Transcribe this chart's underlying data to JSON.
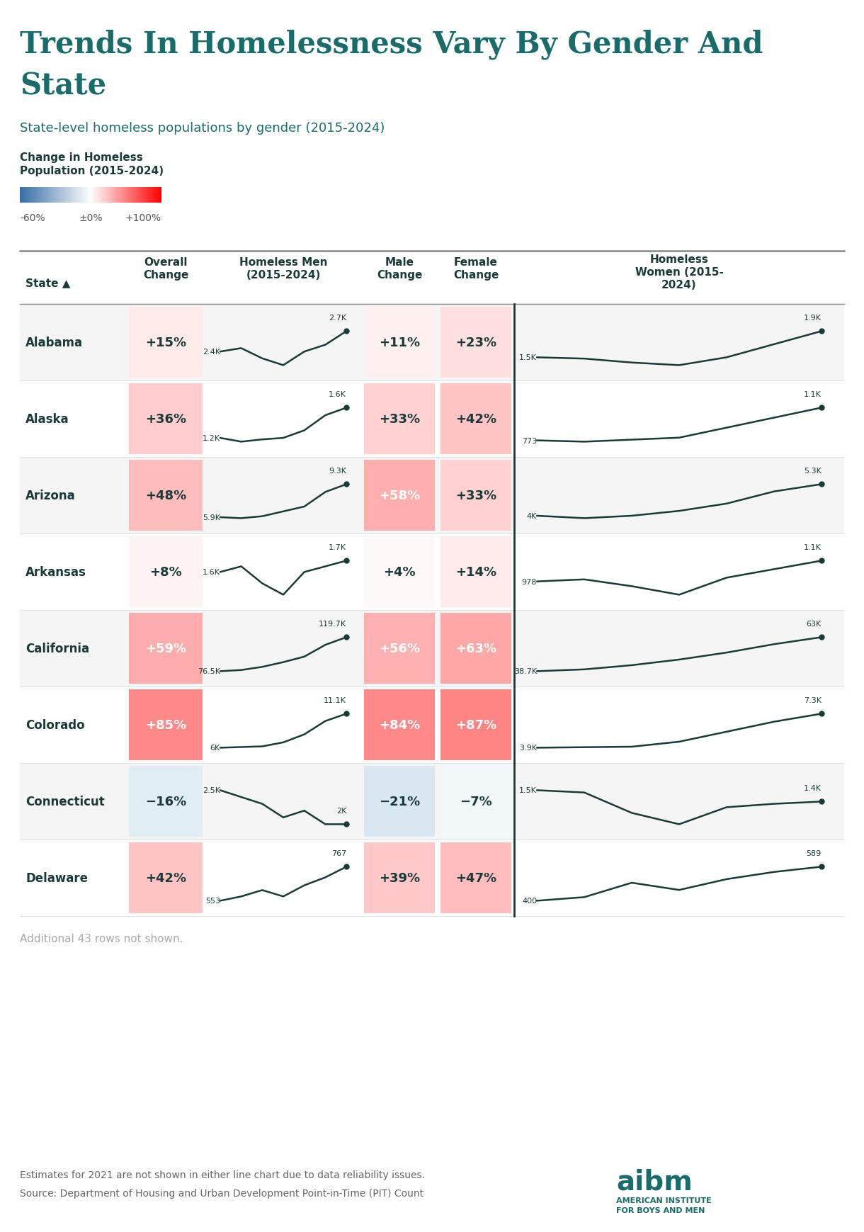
{
  "title_line1": "Trends In Homelessness Vary By Gender And",
  "title_line2": "State",
  "subtitle": "State-level homeless populations by gender (2015-2024)",
  "legend_label": "Change in Homeless\nPopulation (2015-2024)",
  "footer_note": "Additional 43 rows not shown.",
  "footnote1": "Estimates for 2021 are not shown in either line chart due to data reliability issues.",
  "footnote2": "Source: Department of Housing and Urban Development Point-in-Time (PIT) Count",
  "title_color": "#1a6b6b",
  "header_color": "#1a3a3a",
  "line_color": "#1a3a3a",
  "bg_color": "#ffffff",
  "rows": [
    {
      "state": "Alabama",
      "overall_pct": "+15%",
      "overall_val": 15,
      "male_pct": "+11%",
      "male_val": 11,
      "female_pct": "+23%",
      "female_val": 23,
      "men_label_start": "2.4K",
      "men_label_end": "2.7K",
      "women_label_start": "1.5K",
      "women_label_end": "1.9K",
      "men_sparkline": [
        2400,
        2450,
        2300,
        2200,
        2400,
        2500,
        2700
      ],
      "women_sparkline": [
        1500,
        1480,
        1420,
        1380,
        1500,
        1700,
        1900
      ]
    },
    {
      "state": "Alaska",
      "overall_pct": "+36%",
      "overall_val": 36,
      "male_pct": "+33%",
      "male_val": 33,
      "female_pct": "+42%",
      "female_val": 42,
      "men_label_start": "1.2K",
      "men_label_end": "1.6K",
      "women_label_start": "773",
      "women_label_end": "1.1K",
      "men_sparkline": [
        1200,
        1150,
        1180,
        1200,
        1300,
        1500,
        1600
      ],
      "women_sparkline": [
        773,
        760,
        780,
        800,
        900,
        1000,
        1100
      ]
    },
    {
      "state": "Arizona",
      "overall_pct": "+48%",
      "overall_val": 48,
      "male_pct": "+58%",
      "male_val": 58,
      "female_pct": "+33%",
      "female_val": 33,
      "men_label_start": "5.9K",
      "men_label_end": "9.3K",
      "women_label_start": "4K",
      "women_label_end": "5.3K",
      "men_sparkline": [
        5900,
        5800,
        6000,
        6500,
        7000,
        8500,
        9300
      ],
      "women_sparkline": [
        4000,
        3900,
        4000,
        4200,
        4500,
        5000,
        5300
      ]
    },
    {
      "state": "Arkansas",
      "overall_pct": "+8%",
      "overall_val": 8,
      "male_pct": "+4%",
      "male_val": 4,
      "female_pct": "+14%",
      "female_val": 14,
      "men_label_start": "1.6K",
      "men_label_end": "1.7K",
      "women_label_start": "978",
      "women_label_end": "1.1K",
      "men_sparkline": [
        1600,
        1650,
        1500,
        1400,
        1600,
        1650,
        1700
      ],
      "women_sparkline": [
        978,
        990,
        950,
        900,
        1000,
        1050,
        1100
      ]
    },
    {
      "state": "California",
      "overall_pct": "+59%",
      "overall_val": 59,
      "male_pct": "+56%",
      "male_val": 56,
      "female_pct": "+63%",
      "female_val": 63,
      "men_label_start": "76.5K",
      "men_label_end": "119.7K",
      "women_label_start": "38.7K",
      "women_label_end": "63K",
      "men_sparkline": [
        76500,
        78000,
        82000,
        88000,
        95000,
        110000,
        119700
      ],
      "women_sparkline": [
        38700,
        40000,
        43000,
        47000,
        52000,
        58000,
        63000
      ]
    },
    {
      "state": "Colorado",
      "overall_pct": "+85%",
      "overall_val": 85,
      "male_pct": "+84%",
      "male_val": 84,
      "female_pct": "+87%",
      "female_val": 87,
      "men_label_start": "6K",
      "men_label_end": "11.1K",
      "women_label_start": "3.9K",
      "women_label_end": "7.3K",
      "men_sparkline": [
        6000,
        6100,
        6200,
        6800,
        8000,
        10000,
        11100
      ],
      "women_sparkline": [
        3900,
        3950,
        4000,
        4500,
        5500,
        6500,
        7300
      ]
    },
    {
      "state": "Connecticut",
      "overall_pct": "−16%",
      "overall_val": -16,
      "male_pct": "−21%",
      "male_val": -21,
      "female_pct": "−7%",
      "female_val": -7,
      "men_label_start": "2.5K",
      "men_label_end": "2K",
      "women_label_start": "1.5K",
      "women_label_end": "1.4K",
      "men_sparkline": [
        2500,
        2400,
        2300,
        2100,
        2200,
        2000,
        2000
      ],
      "women_sparkline": [
        1500,
        1480,
        1300,
        1200,
        1350,
        1380,
        1400
      ]
    },
    {
      "state": "Delaware",
      "overall_pct": "+42%",
      "overall_val": 42,
      "male_pct": "+39%",
      "male_val": 39,
      "female_pct": "+47%",
      "female_val": 47,
      "men_label_start": "553",
      "men_label_end": "767",
      "women_label_start": "400",
      "women_label_end": "589",
      "men_sparkline": [
        553,
        580,
        620,
        580,
        650,
        700,
        767
      ],
      "women_sparkline": [
        400,
        420,
        500,
        460,
        520,
        560,
        589
      ]
    }
  ]
}
